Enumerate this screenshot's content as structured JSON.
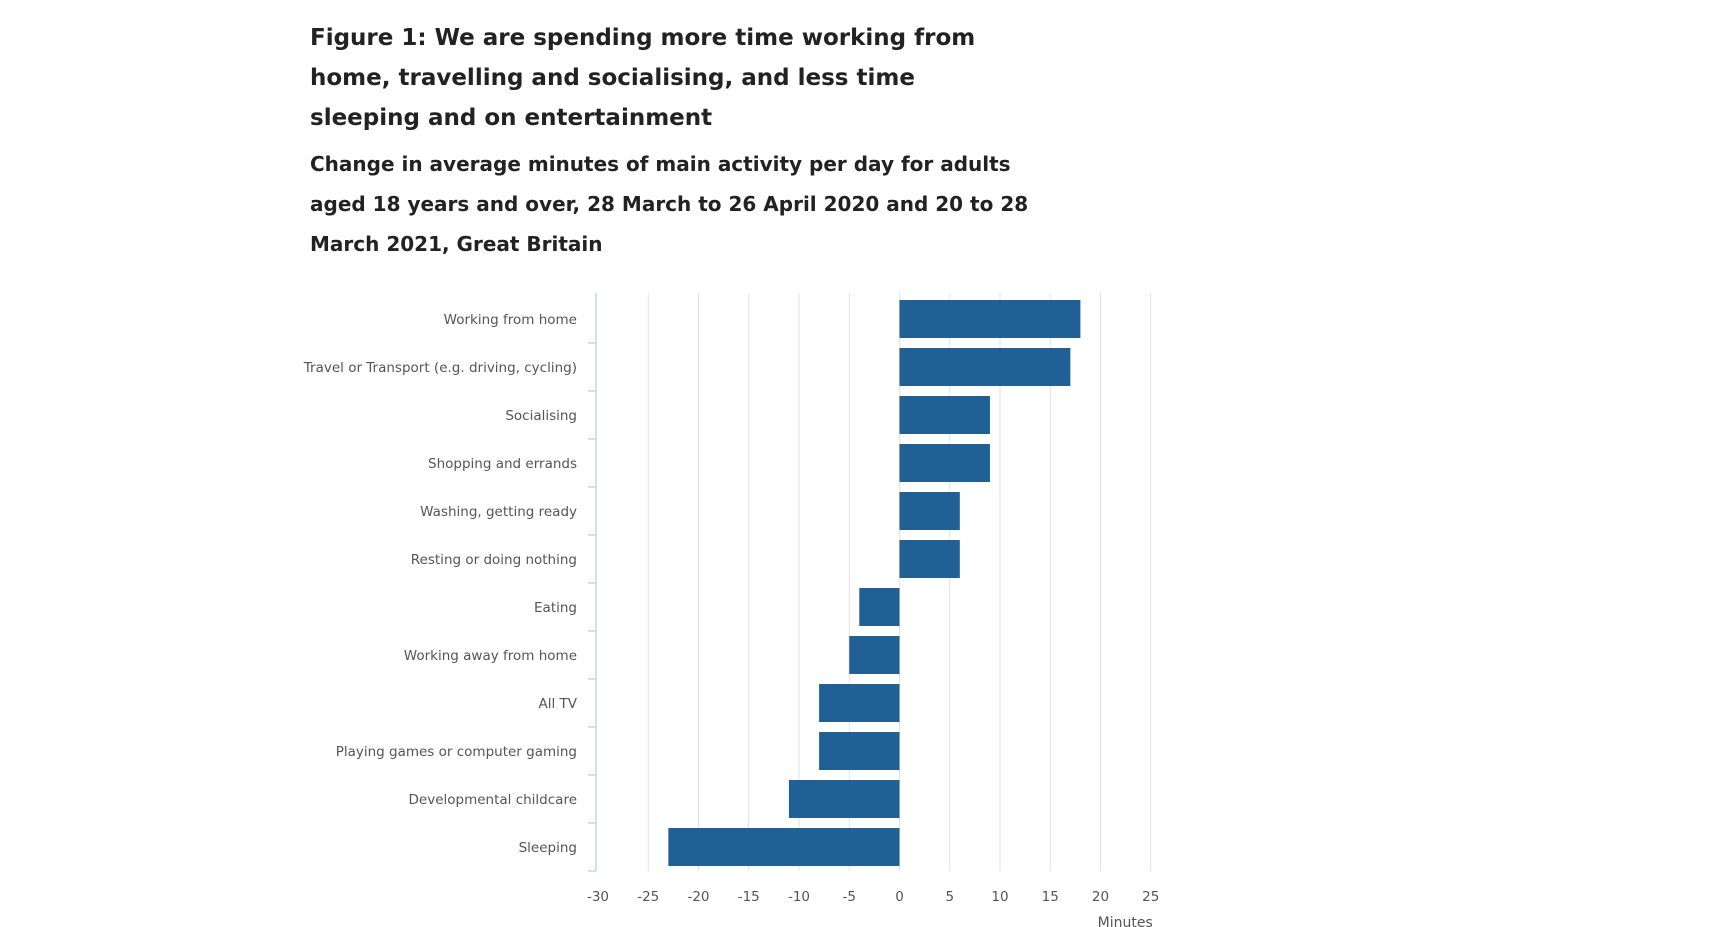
{
  "figure": {
    "title": "Figure 1: We are spending more time working from home, travelling and socialising, and less time sleeping and on entertainment",
    "subtitle": "Change in average minutes of main activity per day for adults aged 18 years and over, 28 March to 26 April 2020 and 20 to 28 March 2021, Great Britain"
  },
  "chart_data": {
    "type": "bar",
    "orientation": "horizontal",
    "title": "Figure 1: We are spending more time working from home, travelling and socialising, and less time sleeping and on entertainment",
    "subtitle": "Change in average minutes of main activity per day for adults aged 18 years and over, 28 March to 26 April 2020 and 20 to 28 March 2021, Great Britain",
    "categories": [
      "Working from home",
      "Travel or Transport (e.g. driving, cycling)",
      "Socialising",
      "Shopping and errands",
      "Washing, getting ready",
      "Resting or doing nothing",
      "Eating",
      "Working away from home",
      "All TV",
      "Playing games or computer gaming",
      "Developmental childcare",
      "Sleeping"
    ],
    "values": [
      18,
      17,
      9,
      9,
      6,
      6,
      -4,
      -5,
      -8,
      -8,
      -11,
      -23
    ],
    "xlabel": "Minutes",
    "ylabel": "",
    "xlim": [
      -30,
      25
    ],
    "xticks": [
      "-30",
      "-25",
      "-20",
      "-15",
      "-10",
      "-5",
      "0",
      "5",
      "10",
      "15",
      "20",
      "25"
    ],
    "grid": true,
    "legend": "none",
    "bar_color": "#206095",
    "grid_color": "#e2e2e3",
    "axis_color": "#c8d3e0"
  }
}
